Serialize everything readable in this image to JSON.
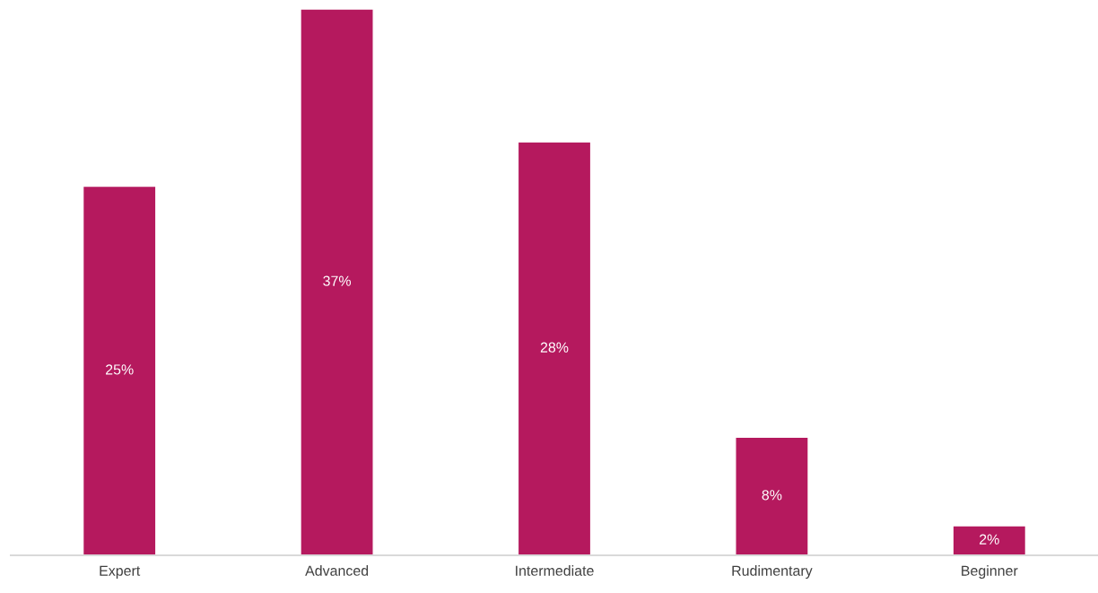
{
  "chart_data": {
    "type": "bar",
    "categories": [
      "Expert",
      "Advanced",
      "Intermediate",
      "Rudimentary",
      "Beginner"
    ],
    "values": [
      25,
      37,
      28,
      8,
      2
    ],
    "value_labels": [
      "25%",
      "37%",
      "28%",
      "8%",
      "2%"
    ],
    "color": "#b5195e",
    "grid": false,
    "legend": false
  }
}
